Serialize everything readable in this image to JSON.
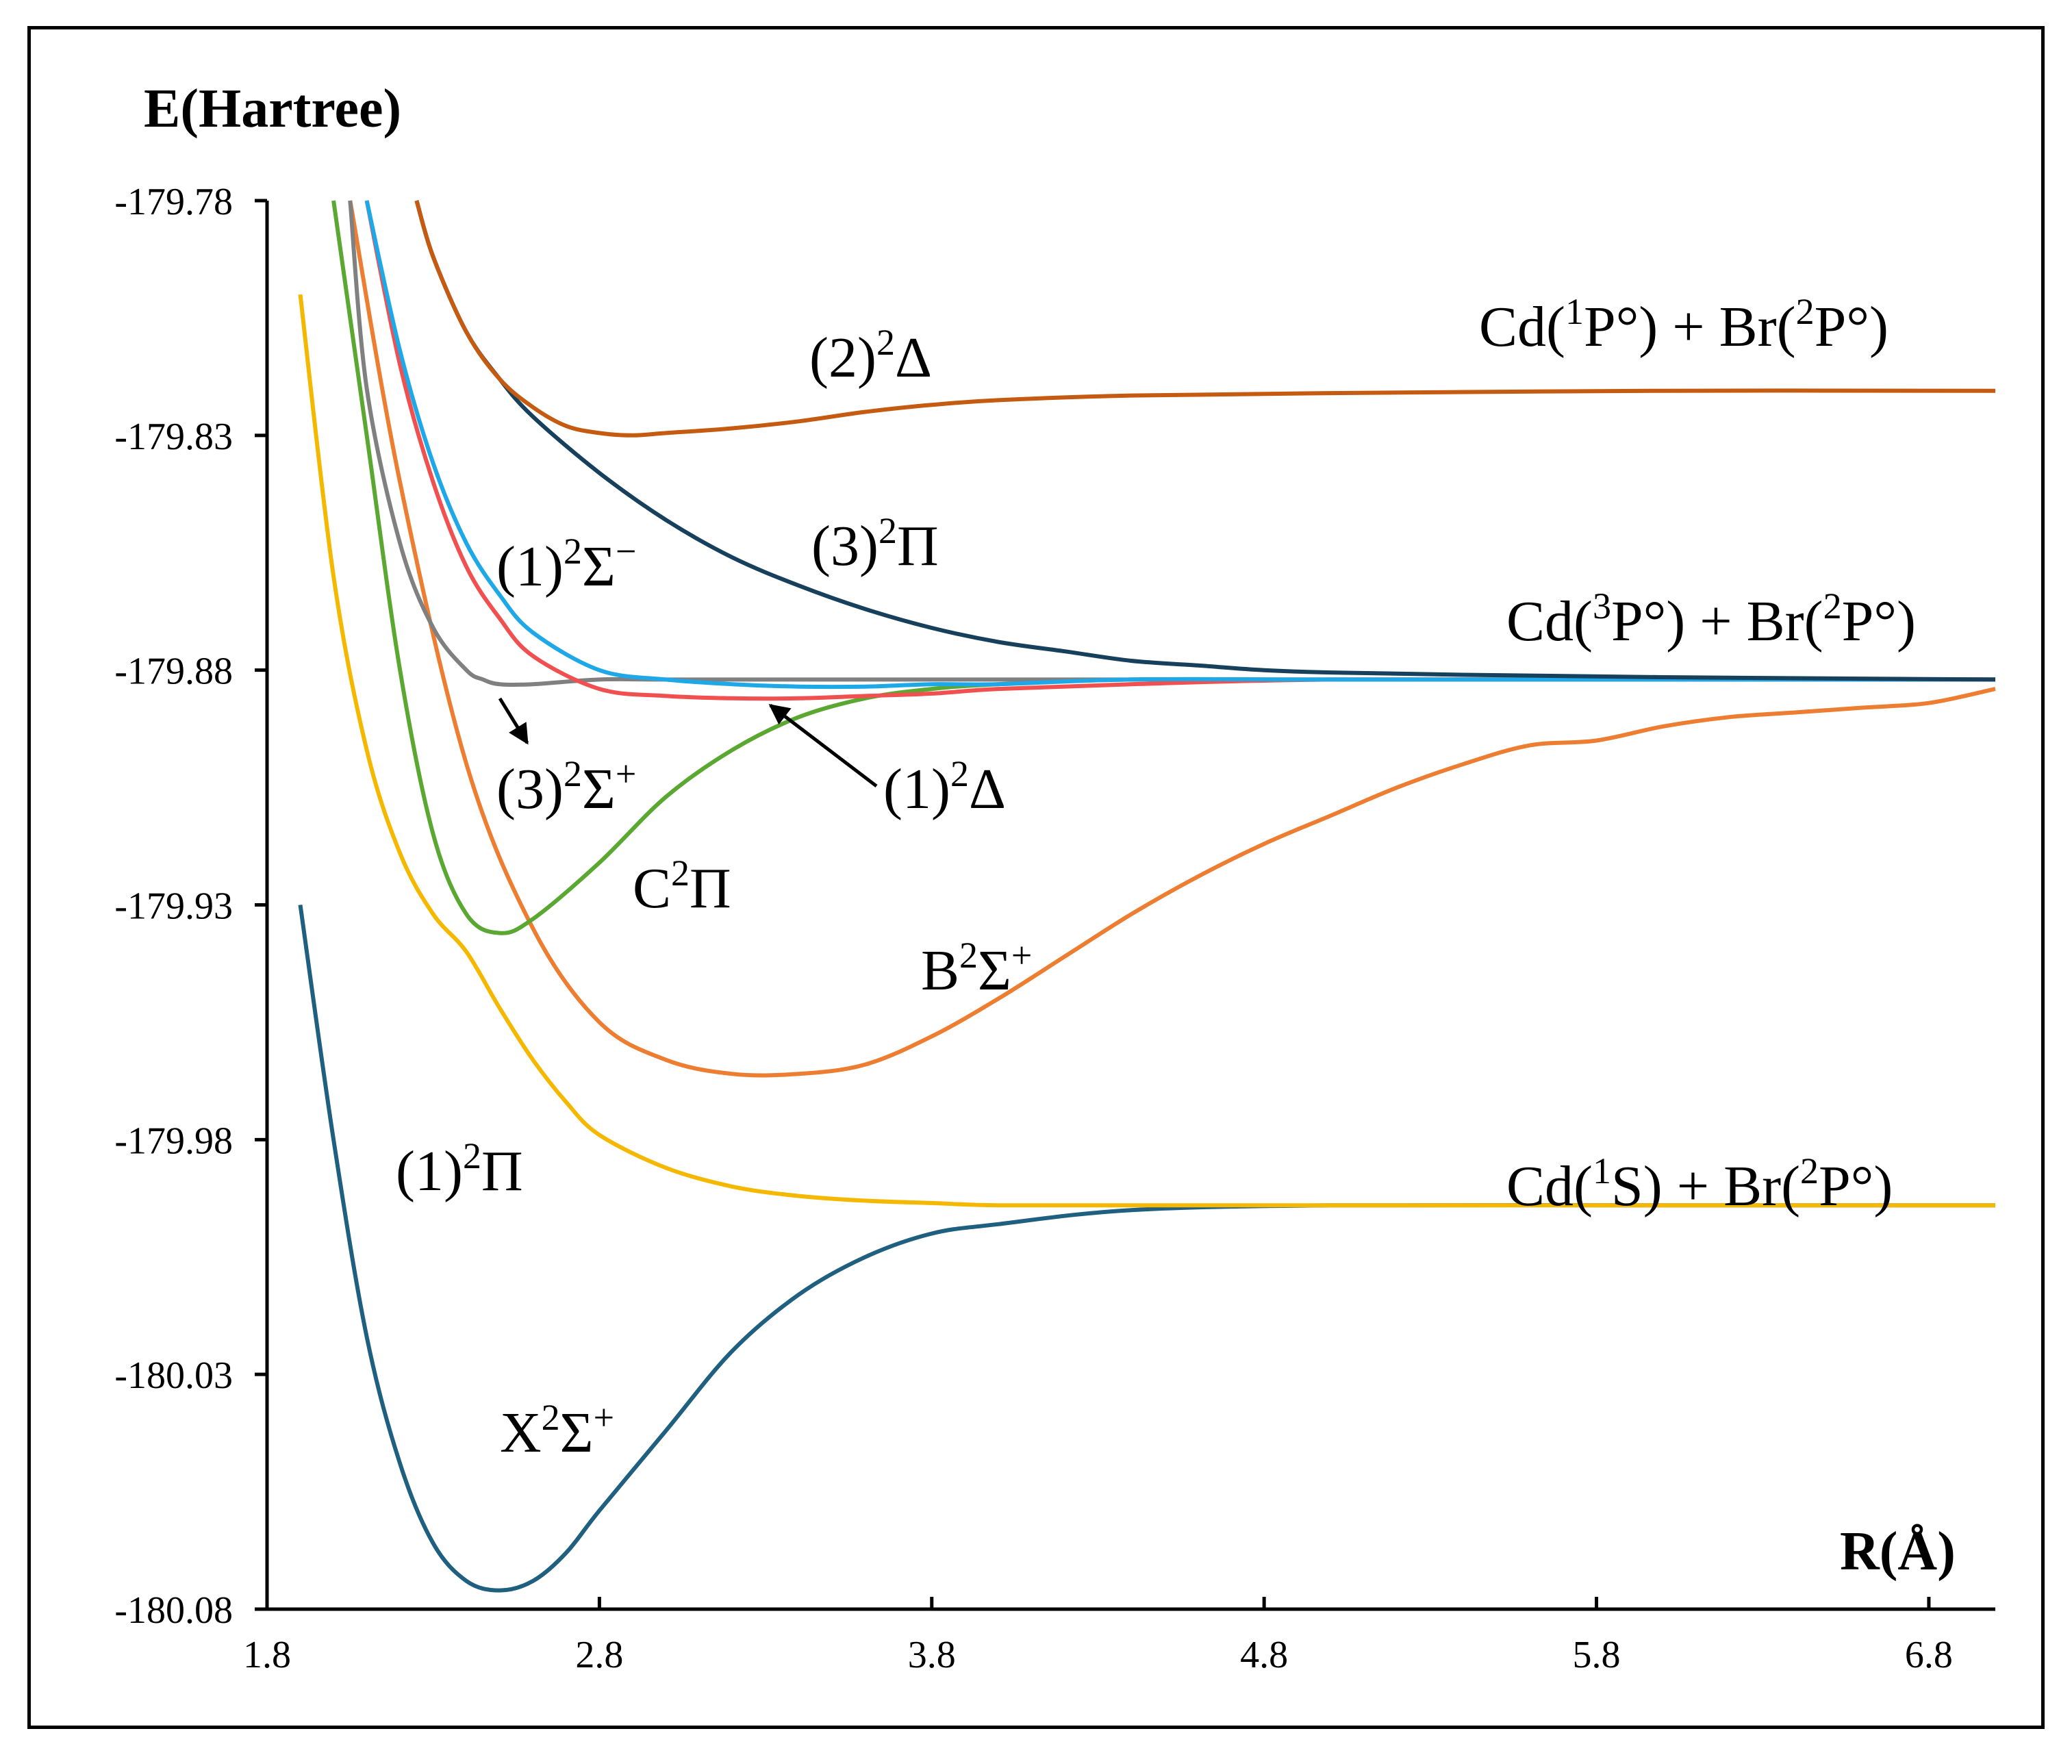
{
  "chart_data": {
    "type": "line",
    "ylabel": "E(Hartree)",
    "xlabel": "R(Å)",
    "xlim": [
      1.8,
      7.0
    ],
    "ylim": [
      -180.08,
      -179.78
    ],
    "xticks": [
      "1.8",
      "2.8",
      "3.8",
      "4.8",
      "5.8",
      "6.8"
    ],
    "yticks": [
      "-179.78",
      "-179.83",
      "-179.88",
      "-179.93",
      "-179.98",
      "-180.03",
      "-180.08"
    ],
    "asymptotes": [
      {
        "id": "cd1p",
        "label": [
          "Cd(",
          "1",
          "P°) + Br(",
          "2",
          "P°)"
        ]
      },
      {
        "id": "cd3p",
        "label": [
          "Cd(",
          "3",
          "P°) + Br(",
          "2",
          "P°)"
        ]
      },
      {
        "id": "cd1s",
        "label": [
          "Cd(",
          "1",
          "S) + Br(",
          "2",
          "P°)"
        ]
      }
    ],
    "series": [
      {
        "id": "x2sigma",
        "name": [
          "X",
          "2",
          "Σ",
          "+"
        ],
        "color": "#1f5f7f",
        "x": [
          1.9,
          2.0,
          2.1,
          2.2,
          2.3,
          2.4,
          2.5,
          2.6,
          2.7,
          2.8,
          3.0,
          3.2,
          3.4,
          3.6,
          3.8,
          4.0,
          4.4,
          5.0,
          6.0,
          7.0
        ],
        "y": [
          -179.93,
          -179.98,
          -180.022,
          -180.049,
          -180.066,
          -180.074,
          -180.076,
          -180.074,
          -180.068,
          -180.059,
          -180.042,
          -180.025,
          -180.013,
          -180.005,
          -180.0,
          -179.998,
          -179.995,
          -179.994,
          -179.994,
          -179.994
        ]
      },
      {
        "id": "pi1",
        "name": [
          "(1)",
          "2",
          "Π",
          ""
        ],
        "color": "#f5b800",
        "x": [
          1.9,
          2.0,
          2.1,
          2.2,
          2.3,
          2.4,
          2.5,
          2.6,
          2.7,
          2.8,
          3.0,
          3.2,
          3.4,
          3.6,
          3.8,
          4.0,
          4.4,
          5.0,
          6.0,
          7.0
        ],
        "y": [
          -179.8,
          -179.86,
          -179.897,
          -179.919,
          -179.932,
          -179.94,
          -179.952,
          -179.963,
          -179.972,
          -179.979,
          -179.986,
          -179.99,
          -179.992,
          -179.993,
          -179.9935,
          -179.994,
          -179.994,
          -179.994,
          -179.994,
          -179.994
        ]
      },
      {
        "id": "b2sigma",
        "name": [
          "B",
          "2",
          "Σ",
          "+"
        ],
        "color": "#ed7d31",
        "x": [
          2.05,
          2.2,
          2.4,
          2.6,
          2.8,
          3.0,
          3.2,
          3.4,
          3.6,
          3.8,
          4.0,
          4.2,
          4.4,
          4.6,
          4.8,
          5.0,
          5.2,
          5.4,
          5.6,
          5.8,
          6.0,
          6.2,
          6.4,
          6.6,
          6.8,
          7.0
        ],
        "y": [
          -179.78,
          -179.84,
          -179.9,
          -179.935,
          -179.955,
          -179.963,
          -179.966,
          -179.966,
          -179.964,
          -179.958,
          -179.95,
          -179.941,
          -179.932,
          -179.924,
          -179.917,
          -179.911,
          -179.905,
          -179.9,
          -179.896,
          -179.895,
          -179.892,
          -179.89,
          -179.889,
          -179.888,
          -179.887,
          -179.884
        ]
      },
      {
        "id": "c2pi",
        "name": [
          "C",
          "2",
          "Π",
          ""
        ],
        "color": "#5aa832",
        "x": [
          2.0,
          2.1,
          2.2,
          2.3,
          2.4,
          2.5,
          2.6,
          2.8,
          3.0,
          3.2,
          3.4,
          3.6,
          3.8,
          4.0,
          4.4,
          5.0,
          6.0,
          7.0
        ],
        "y": [
          -179.78,
          -179.83,
          -179.88,
          -179.915,
          -179.932,
          -179.936,
          -179.933,
          -179.921,
          -179.907,
          -179.897,
          -179.89,
          -179.886,
          -179.884,
          -179.883,
          -179.882,
          -179.882,
          -179.882,
          -179.882
        ]
      },
      {
        "id": "sigma3p",
        "name": [
          "(3)",
          "2",
          "Σ",
          "+"
        ],
        "color": "#808080",
        "x": [
          2.05,
          2.1,
          2.2,
          2.3,
          2.4,
          2.45,
          2.5,
          2.6,
          2.8,
          3.0,
          3.4,
          4.0,
          5.0,
          6.0,
          7.0
        ],
        "y": [
          -179.78,
          -179.82,
          -179.853,
          -179.871,
          -179.88,
          -179.882,
          -179.883,
          -179.883,
          -179.882,
          -179.882,
          -179.882,
          -179.882,
          -179.882,
          -179.882,
          -179.882
        ]
      },
      {
        "id": "delta1",
        "name": [
          "(1)",
          "2",
          "Δ",
          ""
        ],
        "color": "#f0504f",
        "x": [
          2.1,
          2.2,
          2.3,
          2.4,
          2.5,
          2.6,
          2.8,
          3.0,
          3.2,
          3.4,
          3.6,
          3.8,
          4.0,
          4.4,
          5.0,
          6.0,
          7.0
        ],
        "y": [
          -179.78,
          -179.815,
          -179.84,
          -179.858,
          -179.869,
          -179.877,
          -179.884,
          -179.8855,
          -179.886,
          -179.886,
          -179.8855,
          -179.885,
          -179.884,
          -179.883,
          -179.882,
          -179.882,
          -179.882
        ]
      },
      {
        "id": "sigma1m",
        "name": [
          "(1)",
          "2",
          "Σ",
          "−"
        ],
        "color": "#1ea8e8",
        "x": [
          2.1,
          2.2,
          2.3,
          2.4,
          2.5,
          2.6,
          2.8,
          3.0,
          3.2,
          3.4,
          3.6,
          3.8,
          4.0,
          4.4,
          5.0,
          6.0,
          7.0
        ],
        "y": [
          -179.78,
          -179.812,
          -179.836,
          -179.853,
          -179.864,
          -179.872,
          -179.88,
          -179.882,
          -179.883,
          -179.8835,
          -179.8835,
          -179.883,
          -179.883,
          -179.882,
          -179.882,
          -179.882,
          -179.882
        ]
      },
      {
        "id": "pi3",
        "name": [
          "(3)",
          "2",
          "Π",
          ""
        ],
        "color": "#17405c",
        "x": [
          2.25,
          2.3,
          2.4,
          2.5,
          2.6,
          2.8,
          3.0,
          3.2,
          3.4,
          3.6,
          3.8,
          4.0,
          4.2,
          4.4,
          4.6,
          4.8,
          5.0,
          5.4,
          6.0,
          7.0
        ],
        "y": [
          -179.78,
          -179.792,
          -179.808,
          -179.818,
          -179.826,
          -179.838,
          -179.848,
          -179.856,
          -179.862,
          -179.867,
          -179.871,
          -179.874,
          -179.876,
          -179.878,
          -179.879,
          -179.88,
          -179.8805,
          -179.881,
          -179.8815,
          -179.882
        ]
      },
      {
        "id": "delta2",
        "name": [
          "(2)",
          "2",
          "Δ",
          ""
        ],
        "color": "#c55a11",
        "x": [
          2.25,
          2.3,
          2.4,
          2.5,
          2.6,
          2.7,
          2.8,
          2.9,
          3.0,
          3.2,
          3.4,
          3.6,
          3.8,
          4.0,
          4.4,
          5.0,
          6.0,
          7.0
        ],
        "y": [
          -179.78,
          -179.792,
          -179.808,
          -179.818,
          -179.824,
          -179.828,
          -179.8295,
          -179.83,
          -179.8295,
          -179.8285,
          -179.827,
          -179.825,
          -179.8235,
          -179.8225,
          -179.8215,
          -179.821,
          -179.8205,
          -179.8205
        ]
      }
    ]
  }
}
